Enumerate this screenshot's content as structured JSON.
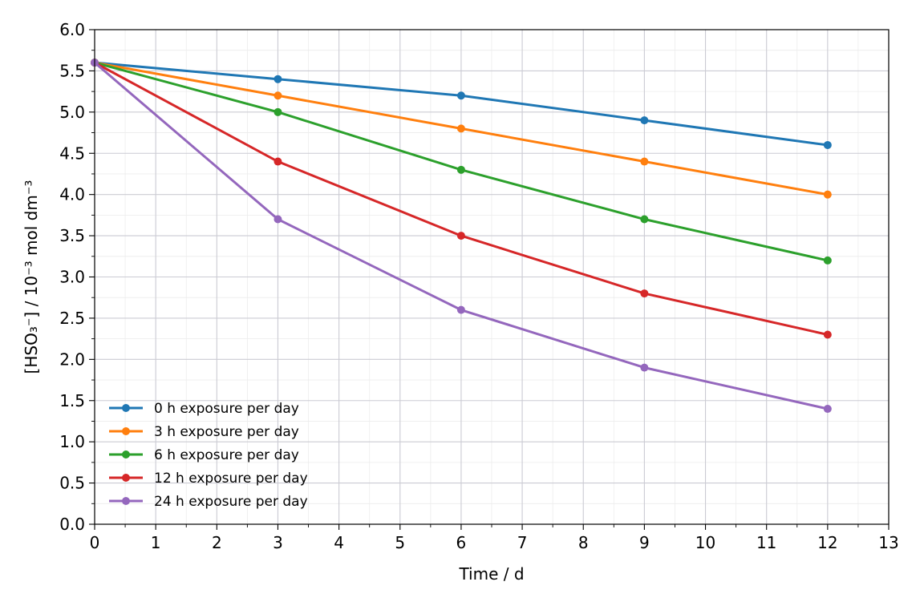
{
  "chart_data": {
    "type": "line",
    "title": "",
    "xlabel": "Time / d",
    "ylabel": "[HSO₃⁻] / 10⁻³ mol dm⁻³",
    "xlim": [
      0,
      13
    ],
    "ylim": [
      0,
      6.0
    ],
    "x_ticks": [
      0,
      1,
      2,
      3,
      4,
      5,
      6,
      7,
      8,
      9,
      10,
      11,
      12,
      13
    ],
    "x_tick_labels": [
      "0",
      "1",
      "2",
      "3",
      "4",
      "5",
      "6",
      "7",
      "8",
      "9",
      "10",
      "11",
      "12",
      "13"
    ],
    "y_ticks": [
      0,
      0.5,
      1.0,
      1.5,
      2.0,
      2.5,
      3.0,
      3.5,
      4.0,
      4.5,
      5.0,
      5.5,
      6.0
    ],
    "y_tick_labels": [
      "0.0",
      "0.5",
      "1.0",
      "1.5",
      "2.0",
      "2.5",
      "3.0",
      "3.5",
      "4.0",
      "4.5",
      "5.0",
      "5.5",
      "6.0"
    ],
    "grid": true,
    "minor_grid": true,
    "legend_position": "lower-left",
    "x": [
      0,
      3,
      6,
      9,
      12
    ],
    "series": [
      {
        "name": "0 h exposure per day",
        "color": "#1f77b4",
        "values": [
          5.6,
          5.4,
          5.2,
          4.9,
          4.6
        ]
      },
      {
        "name": "3 h exposure per day",
        "color": "#ff7f0e",
        "values": [
          5.6,
          5.2,
          4.8,
          4.4,
          4.0
        ]
      },
      {
        "name": "6 h exposure per day",
        "color": "#2ca02c",
        "values": [
          5.6,
          5.0,
          4.3,
          3.7,
          3.2
        ]
      },
      {
        "name": "12 h exposure per day",
        "color": "#d62728",
        "values": [
          5.6,
          4.4,
          3.5,
          2.8,
          2.3
        ]
      },
      {
        "name": "24 h exposure per day",
        "color": "#9467bd",
        "values": [
          5.6,
          3.7,
          2.6,
          1.9,
          1.4
        ]
      }
    ]
  }
}
